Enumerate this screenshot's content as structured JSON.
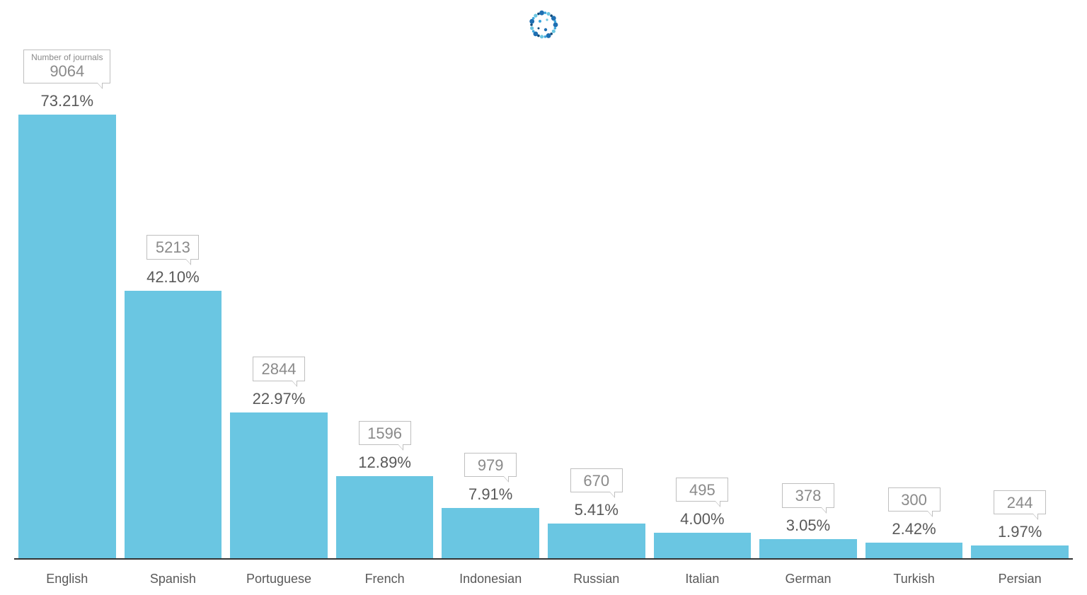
{
  "chart": {
    "type": "bar",
    "background_color": "#ffffff",
    "bar_color": "#6ac6e2",
    "axis_color": "#333333",
    "callout_border_color": "#bfbfbf",
    "callout_text_color": "#8a8a8a",
    "callout_caption_color": "#8a8a8a",
    "callout_caption": "Number of journals",
    "pct_label_color": "#595959",
    "xlabel_color": "#595959",
    "pct_fontsize": 22,
    "callout_value_fontsize": 22,
    "callout_caption_fontsize": 12,
    "xlabel_fontsize": 18,
    "y_max_pct": 80,
    "bar_width_ratio": 1.0,
    "logo_colors": [
      "#1f6fb2",
      "#3aa6dd",
      "#6ac6e2",
      "#0d4a7a"
    ],
    "categories": [
      "English",
      "Spanish",
      "Portuguese",
      "French",
      "Indonesian",
      "Russian",
      "Italian",
      "German",
      "Turkish",
      "Persian"
    ],
    "counts": [
      9064,
      5213,
      2844,
      1596,
      979,
      670,
      495,
      378,
      300,
      244
    ],
    "percents": [
      "73.21%",
      "42.10%",
      "22.97%",
      "12.89%",
      "7.91%",
      "5.41%",
      "4.00%",
      "3.05%",
      "2.42%",
      "1.97%"
    ],
    "percent_values": [
      73.21,
      42.1,
      22.97,
      12.89,
      7.91,
      5.41,
      4.0,
      3.05,
      2.42,
      1.97
    ],
    "show_caption_on_first_only": true
  }
}
